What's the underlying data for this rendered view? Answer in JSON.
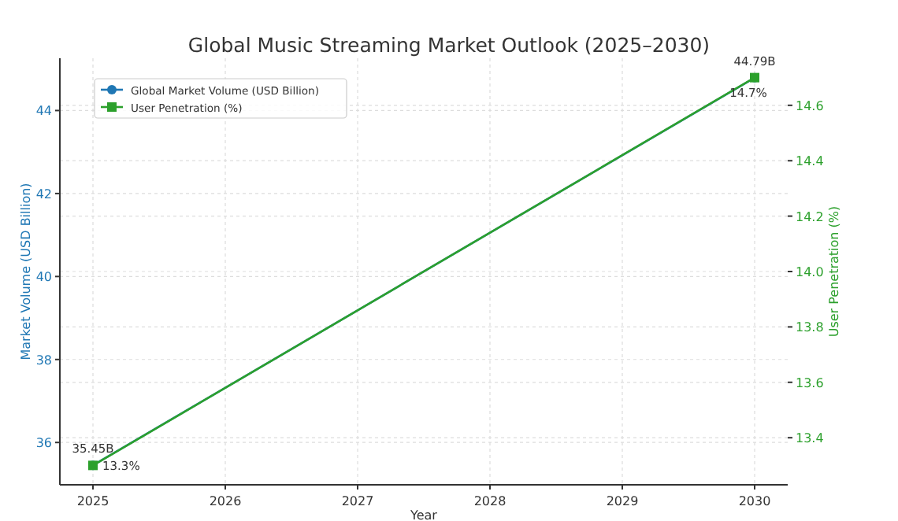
{
  "chart_data": {
    "type": "line",
    "title": "Global Music Streaming Market Outlook (2025–2030)",
    "xlabel": "Year",
    "ylabel": "Market Volume (USD Billion)",
    "y2label": "User Penetration (%)",
    "x": [
      2025,
      2030
    ],
    "series": [
      {
        "name": "Global Market Volume (USD Billion)",
        "color": "#1f77b4",
        "values": [
          35.45,
          44.79
        ],
        "value_labels": [
          "35.45B",
          "44.79B"
        ],
        "marker": "circle"
      },
      {
        "name": "User Penetration (%)",
        "color": "#2ca02c",
        "values": [
          13.3,
          14.7
        ],
        "value_labels": [
          "13.3%",
          "14.7%"
        ],
        "marker": "square",
        "axis": "y2"
      }
    ],
    "xlim": [
      2024.75,
      2030.25
    ],
    "xticks": [
      2025,
      2026,
      2027,
      2028,
      2029,
      2030
    ],
    "ylim": [
      34.98,
      45.26
    ],
    "yticks": [
      36,
      38,
      40,
      42,
      44
    ],
    "y2lim": [
      13.23,
      14.77
    ],
    "y2ticks": [
      {
        "value": 13.4,
        "label": "13.4"
      },
      {
        "value": 13.6,
        "label": "13.6"
      },
      {
        "value": 13.8,
        "label": "13.8"
      },
      {
        "value": 14.0,
        "label": "14.0"
      },
      {
        "value": 14.2,
        "label": "14.2"
      },
      {
        "value": 14.4,
        "label": "14.4"
      },
      {
        "value": 14.6,
        "label": "14.6"
      }
    ],
    "grid": true,
    "legend": "top left"
  }
}
